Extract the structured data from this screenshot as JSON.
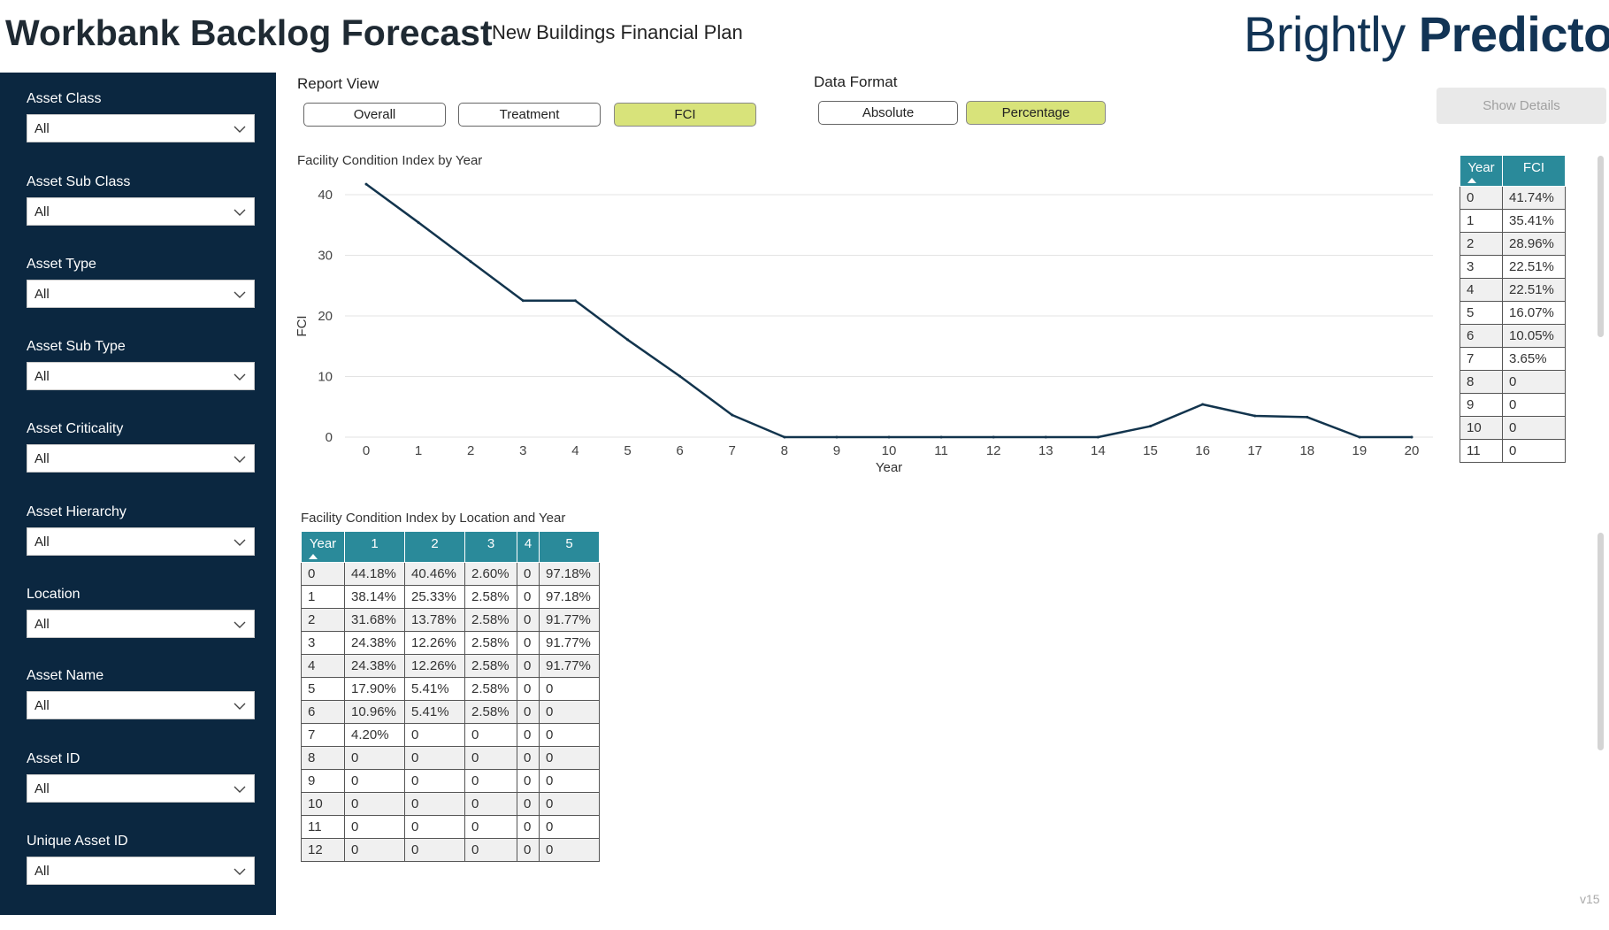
{
  "header": {
    "title": "Workbank Backlog Forecast",
    "subtitle": "New Buildings Financial Plan",
    "brand_light": "Brightly",
    "brand_bold": "Predictor"
  },
  "sidebar": {
    "filters": [
      {
        "label": "Asset Class",
        "value": "All"
      },
      {
        "label": "Asset Sub Class",
        "value": "All"
      },
      {
        "label": "Asset Type",
        "value": "All"
      },
      {
        "label": "Asset Sub Type",
        "value": "All"
      },
      {
        "label": "Asset Criticality",
        "value": "All"
      },
      {
        "label": "Asset Hierarchy",
        "value": "All"
      },
      {
        "label": "Location",
        "value": "All"
      },
      {
        "label": "Asset Name",
        "value": "All"
      },
      {
        "label": "Asset ID",
        "value": "All"
      },
      {
        "label": "Unique Asset ID",
        "value": "All"
      }
    ]
  },
  "report_view": {
    "label": "Report View",
    "options": [
      "Overall",
      "Treatment",
      "FCI"
    ],
    "selected": "FCI"
  },
  "data_format": {
    "label": "Data Format",
    "options": [
      "Absolute",
      "Percentage"
    ],
    "selected": "Percentage"
  },
  "show_details_label": "Show Details",
  "colors": {
    "sidebar_bg": "#0b2740",
    "accent": "#d8e37a",
    "table_header": "#2a8a9a",
    "line": "#12344d",
    "brand": "#123455"
  },
  "chart_data": {
    "type": "line",
    "title": "Facility Condition Index by Year",
    "xlabel": "Year",
    "ylabel": "FCI",
    "x": [
      0,
      1,
      2,
      3,
      4,
      5,
      6,
      7,
      8,
      9,
      10,
      11,
      12,
      13,
      14,
      15,
      16,
      17,
      18,
      19,
      20
    ],
    "series": [
      {
        "values": [
          41.74,
          35.41,
          28.96,
          22.51,
          22.51,
          16.07,
          10.05,
          3.65,
          0,
          0,
          0,
          0,
          0,
          0,
          0,
          1.8,
          5.4,
          3.5,
          3.3,
          0,
          0
        ]
      }
    ],
    "xlim": [
      0,
      20
    ],
    "ylim": [
      0,
      40
    ],
    "yticks": [
      0,
      10,
      20,
      30,
      40
    ],
    "grid": true
  },
  "fci_table": {
    "headers": [
      "Year",
      "FCI"
    ],
    "rows": [
      [
        "0",
        "41.74%"
      ],
      [
        "1",
        "35.41%"
      ],
      [
        "2",
        "28.96%"
      ],
      [
        "3",
        "22.51%"
      ],
      [
        "4",
        "22.51%"
      ],
      [
        "5",
        "16.07%"
      ],
      [
        "6",
        "10.05%"
      ],
      [
        "7",
        "3.65%"
      ],
      [
        "8",
        "0"
      ],
      [
        "9",
        "0"
      ],
      [
        "10",
        "0"
      ],
      [
        "11",
        "0"
      ]
    ]
  },
  "location_table": {
    "title": "Facility Condition Index by Location and Year",
    "headers": [
      "Year",
      "1",
      "2",
      "3",
      "4",
      "5"
    ],
    "rows": [
      [
        "0",
        "44.18%",
        "40.46%",
        "2.60%",
        "0",
        "97.18%"
      ],
      [
        "1",
        "38.14%",
        "25.33%",
        "2.58%",
        "0",
        "97.18%"
      ],
      [
        "2",
        "31.68%",
        "13.78%",
        "2.58%",
        "0",
        "91.77%"
      ],
      [
        "3",
        "24.38%",
        "12.26%",
        "2.58%",
        "0",
        "91.77%"
      ],
      [
        "4",
        "24.38%",
        "12.26%",
        "2.58%",
        "0",
        "91.77%"
      ],
      [
        "5",
        "17.90%",
        "5.41%",
        "2.58%",
        "0",
        "0"
      ],
      [
        "6",
        "10.96%",
        "5.41%",
        "2.58%",
        "0",
        "0"
      ],
      [
        "7",
        "4.20%",
        "0",
        "0",
        "0",
        "0"
      ],
      [
        "8",
        "0",
        "0",
        "0",
        "0",
        "0"
      ],
      [
        "9",
        "0",
        "0",
        "0",
        "0",
        "0"
      ],
      [
        "10",
        "0",
        "0",
        "0",
        "0",
        "0"
      ],
      [
        "11",
        "0",
        "0",
        "0",
        "0",
        "0"
      ],
      [
        "12",
        "0",
        "0",
        "0",
        "0",
        "0"
      ]
    ]
  },
  "version": "v15"
}
